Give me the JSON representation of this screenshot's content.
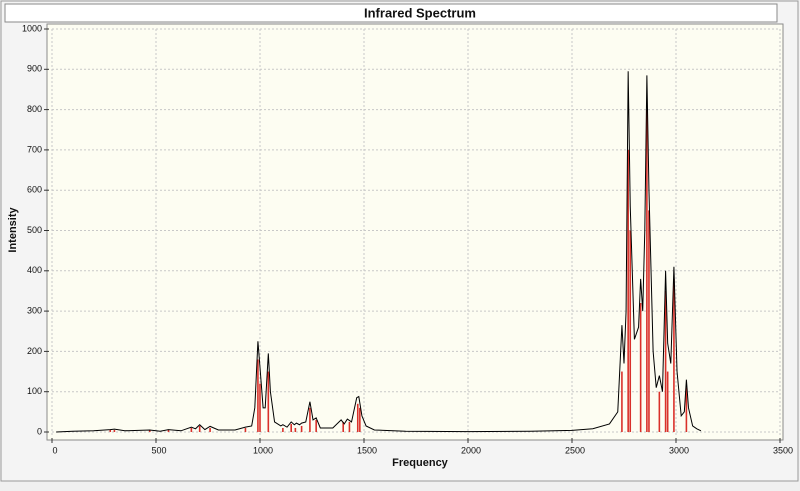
{
  "chart_data": {
    "type": "spectrum",
    "title": "Infrared Spectrum",
    "x_label": "Frequency",
    "y_label": "Intensity",
    "xlim": [
      0,
      3500
    ],
    "xticks": [
      0,
      500,
      1000,
      1500,
      2000,
      2500,
      3000,
      3500
    ],
    "ylim": [
      0,
      1000
    ],
    "yticks": [
      0,
      100,
      200,
      300,
      400,
      500,
      600,
      700,
      800,
      900,
      1000
    ],
    "grid": true,
    "series": [
      {
        "style": "line",
        "color": "#000000",
        "x": [
          20,
          100,
          200,
          280,
          300,
          350,
          470,
          520,
          560,
          620,
          670,
          690,
          710,
          735,
          760,
          800,
          880,
          930,
          960,
          975,
          990,
          1000,
          1015,
          1025,
          1040,
          1050,
          1070,
          1100,
          1110,
          1130,
          1150,
          1165,
          1175,
          1190,
          1200,
          1220,
          1240,
          1255,
          1270,
          1290,
          1350,
          1390,
          1405,
          1420,
          1440,
          1465,
          1475,
          1490,
          1510,
          1550,
          1700,
          2000,
          2300,
          2500,
          2600,
          2680,
          2720,
          2740,
          2750,
          2760,
          2770,
          2780,
          2800,
          2820,
          2830,
          2840,
          2850,
          2860,
          2870,
          2890,
          2905,
          2920,
          2935,
          2950,
          2960,
          2975,
          2990,
          3005,
          3025,
          3040,
          3050,
          3060,
          3080,
          3100,
          3120
        ],
        "values": [
          0,
          2,
          3,
          6,
          7,
          3,
          5,
          2,
          6,
          3,
          12,
          8,
          18,
          6,
          14,
          5,
          5,
          12,
          15,
          60,
          225,
          160,
          60,
          60,
          195,
          100,
          25,
          15,
          18,
          12,
          25,
          18,
          22,
          18,
          22,
          25,
          75,
          30,
          35,
          10,
          10,
          30,
          20,
          32,
          25,
          85,
          88,
          40,
          15,
          5,
          2,
          1,
          2,
          4,
          8,
          20,
          50,
          265,
          170,
          300,
          895,
          560,
          230,
          260,
          380,
          300,
          500,
          885,
          600,
          200,
          110,
          140,
          100,
          400,
          220,
          170,
          410,
          150,
          40,
          50,
          130,
          60,
          15,
          8,
          3
        ]
      },
      {
        "style": "stick",
        "color": "#d9302a",
        "x": [
          280,
          300,
          470,
          560,
          670,
          710,
          760,
          930,
          990,
          1000,
          1040,
          1110,
          1150,
          1170,
          1200,
          1240,
          1270,
          1400,
          1430,
          1470,
          1480,
          2740,
          2770,
          2780,
          2830,
          2860,
          2870,
          2920,
          2950,
          2960,
          2990,
          3050
        ],
        "values": [
          5,
          5,
          4,
          5,
          10,
          15,
          10,
          10,
          180,
          120,
          150,
          10,
          20,
          10,
          15,
          60,
          30,
          25,
          25,
          70,
          60,
          150,
          700,
          500,
          320,
          800,
          550,
          100,
          350,
          150,
          380,
          110
        ]
      }
    ]
  }
}
